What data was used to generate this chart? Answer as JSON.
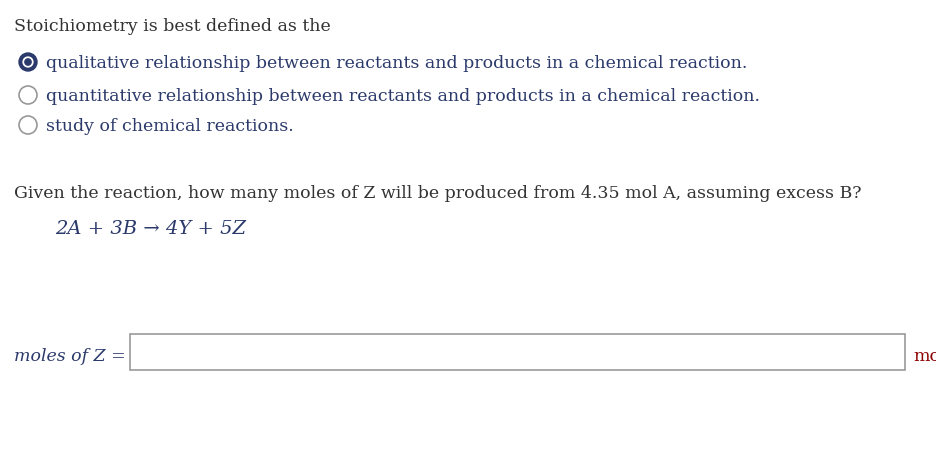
{
  "bg_color": "#ffffff",
  "text_color": "#2b3a6b",
  "q1_header": "Stoichiometry is best defined as the",
  "options": [
    {
      "text": "qualitative relationship between reactants and products in a chemical reaction.",
      "selected": true
    },
    {
      "text": "quantitative relationship between reactants and products in a chemical reaction.",
      "selected": false
    },
    {
      "text": "study of chemical reactions.",
      "selected": false
    }
  ],
  "q2_text": "Given the reaction, how many moles of Z will be produced from 4.35 mol A, assuming excess B?",
  "equation": "2A + 3B → 4Y + 5Z",
  "answer_label": "moles of Z =",
  "answer_unit": "mol",
  "font_size": 12.5,
  "radio_border_color_selected": "#2b3a6b",
  "radio_border_color_unselected": "#999999",
  "radio_fill_selected": "#2b3a6b",
  "answer_label_color": "#2b3a6b",
  "answer_unit_color": "#8b0000",
  "input_box_edge": "#999999"
}
